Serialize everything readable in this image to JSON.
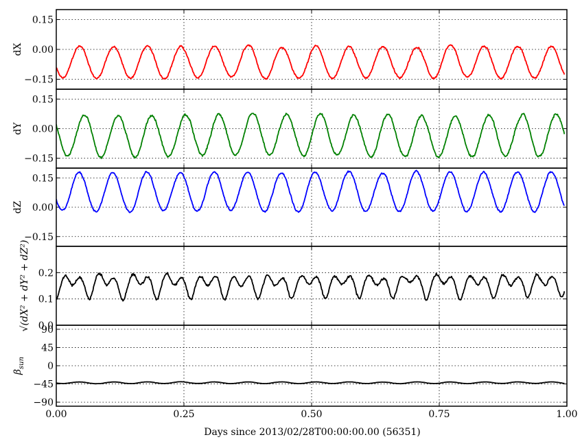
{
  "chart_data": {
    "type": "line",
    "xlabel": "Days since 2013/02/28T00:00:00.00 (56351)",
    "xlim": [
      0,
      1
    ],
    "xticks": [
      "0.00",
      "0.25",
      "0.50",
      "0.75",
      "1.00"
    ],
    "panels": [
      {
        "id": "dX",
        "ylabel": "dX",
        "ylim": [
          -0.2,
          0.2
        ],
        "yticks": [
          "0.15",
          "0.00",
          "−0.15"
        ],
        "color": "#ff0000",
        "series": {
          "period_days": 0.066,
          "phase_peak_day": 0.046,
          "mean": -0.065,
          "amplitude": 0.08,
          "noise": 0.006,
          "x_start": 0.0,
          "x_end": 0.995
        }
      },
      {
        "id": "dY",
        "ylabel": "dY",
        "ylim": [
          -0.2,
          0.2
        ],
        "yticks": [
          "0.15",
          "0.00",
          "−0.15"
        ],
        "color": "#008000",
        "series": {
          "period_days": 0.066,
          "phase_peak_day": 0.055,
          "mean": -0.035,
          "amplitude": 0.105,
          "noise": 0.008,
          "x_start": 0.0,
          "x_end": 0.995
        }
      },
      {
        "id": "dZ",
        "ylabel": "dZ",
        "ylim": [
          -0.2,
          0.2
        ],
        "yticks": [
          "0.15",
          "0.00",
          "−0.15"
        ],
        "color": "#0000ff",
        "series": {
          "period_days": 0.066,
          "phase_peak_day": 0.045,
          "mean": 0.08,
          "amplitude": 0.1,
          "noise": 0.006,
          "x_start": 0.0,
          "x_end": 0.995
        }
      },
      {
        "id": "mag",
        "ylabel": "√(dX² + dY² + dZ²)",
        "ylim": [
          0,
          0.3
        ],
        "yticks": [
          "0.2",
          "0.1",
          "0.0"
        ],
        "color": "#000000",
        "series": {
          "derived": "magnitude",
          "x_start": 0.0,
          "x_end": 0.995
        }
      },
      {
        "id": "beta",
        "ylabel": "β_sun",
        "ylim": [
          -100,
          100
        ],
        "yticks": [
          "90",
          "45",
          "0",
          "−45",
          "−90"
        ],
        "color": "#000000",
        "series": {
          "mean": -42,
          "amplitude": 2,
          "period_days": 0.066,
          "phase_peak_day": 0.046,
          "noise": 0.3,
          "x_start": 0.0,
          "x_end": 0.995
        }
      }
    ]
  }
}
